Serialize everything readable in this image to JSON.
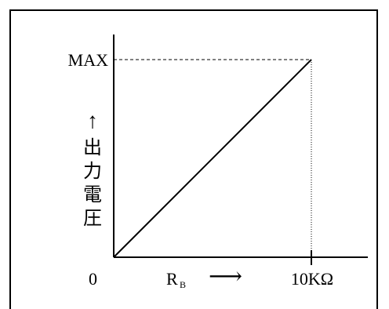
{
  "chart_data": {
    "type": "line",
    "title": "",
    "x": [
      0,
      1
    ],
    "series": [
      {
        "values": [
          0,
          1
        ]
      }
    ],
    "xlim": [
      0,
      1
    ],
    "ylim": [
      0,
      1
    ],
    "xlabel": "R",
    "xlabel_subscript": "B",
    "xlabel_arrow": "⟶",
    "x_tick_labels": {
      "start": "0",
      "end": "10KΩ"
    },
    "y_tick_labels": {
      "max": "MAX"
    },
    "ylabel_arrow": "↑",
    "ylabel_chars": [
      "出",
      "力",
      "電",
      "圧"
    ],
    "grid": false,
    "legend": "none"
  }
}
